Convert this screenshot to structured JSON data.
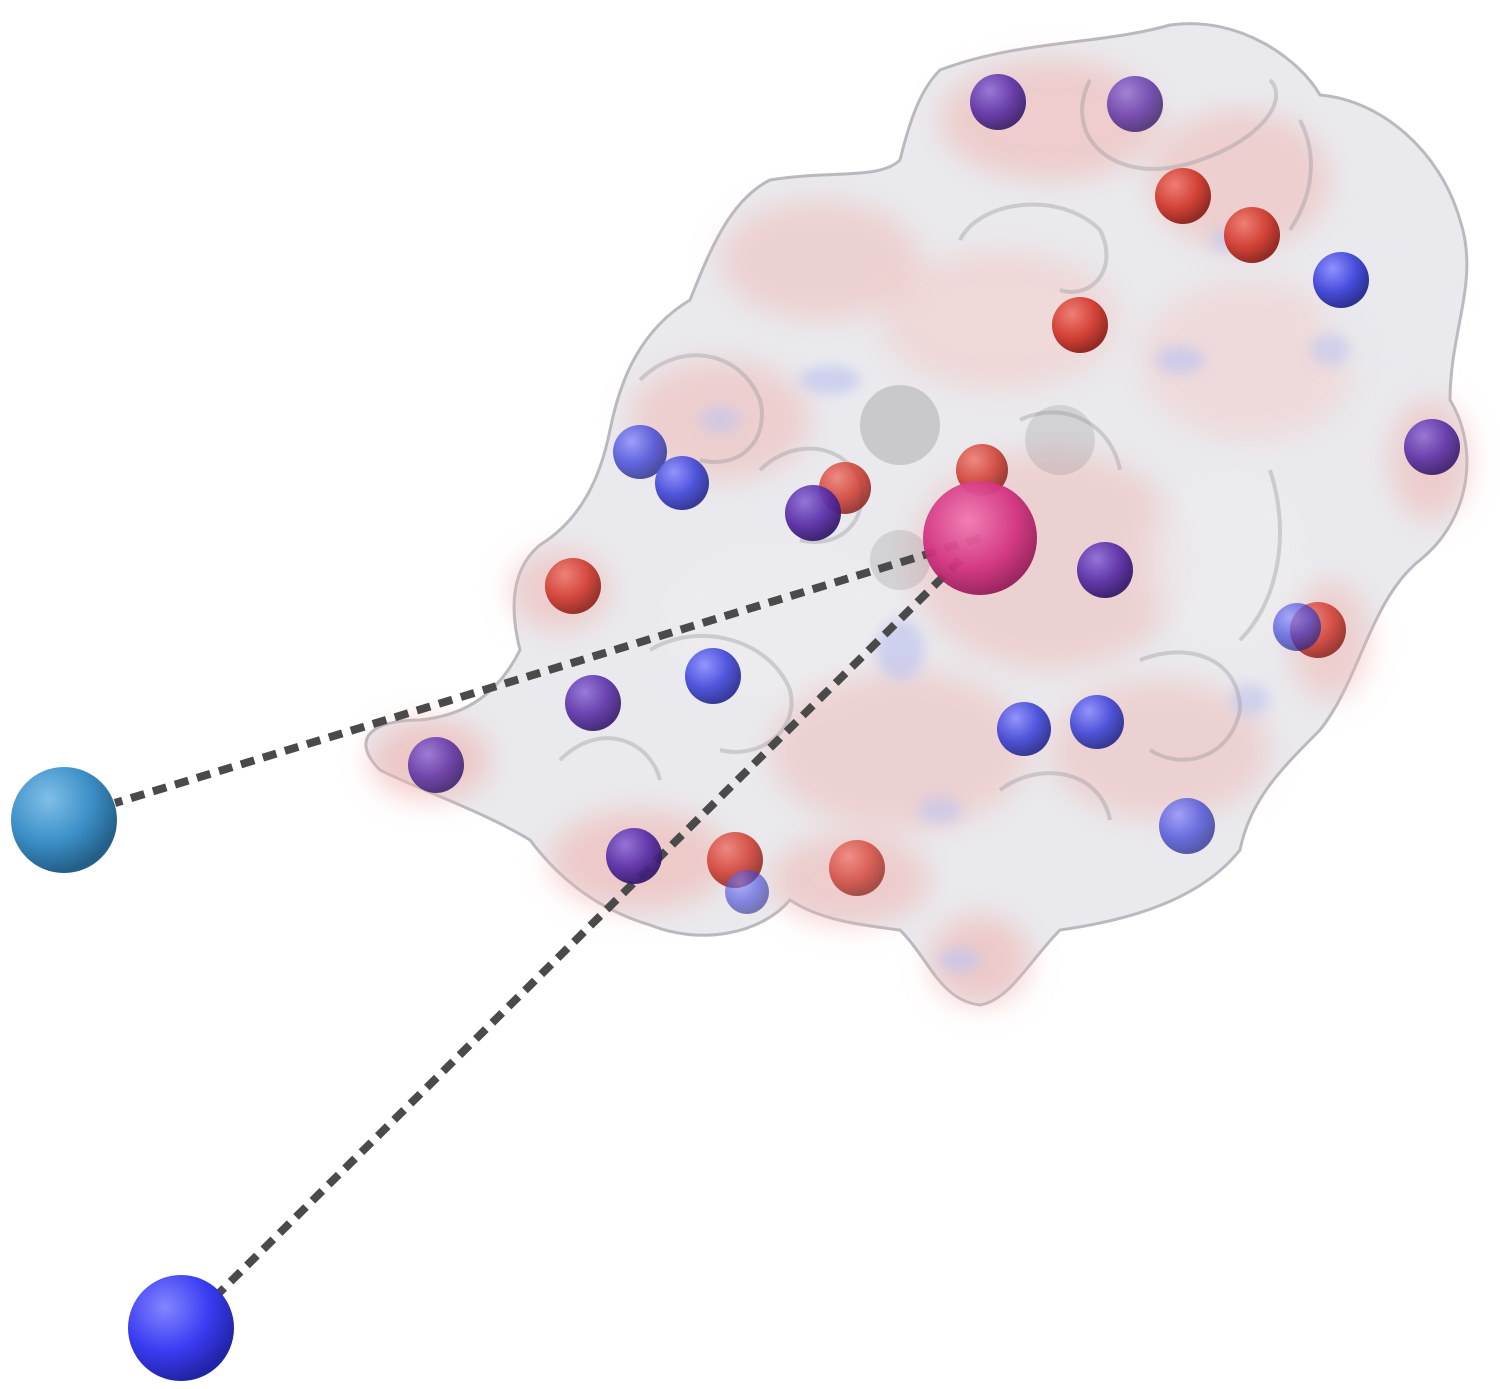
{
  "scene": {
    "description_visible_text": "",
    "colors": {
      "background": "#ffffff",
      "surface": "#e6e6ea",
      "surface_positive": "#f0b4b0",
      "surface_negative": "#c0c4ee",
      "acidic_atom": "#d03a2e",
      "basic_atom": "#3d44d8",
      "basic_atom_buried": "#5a2fa6",
      "central_ligand": "#d2327f",
      "remote_sphere_a": "#3b8ec6",
      "remote_sphere_b": "#3a3cf2",
      "bond_line": "#4a4a4a"
    },
    "icons": [
      "protein-surface",
      "ion-sphere",
      "distance-line"
    ]
  }
}
